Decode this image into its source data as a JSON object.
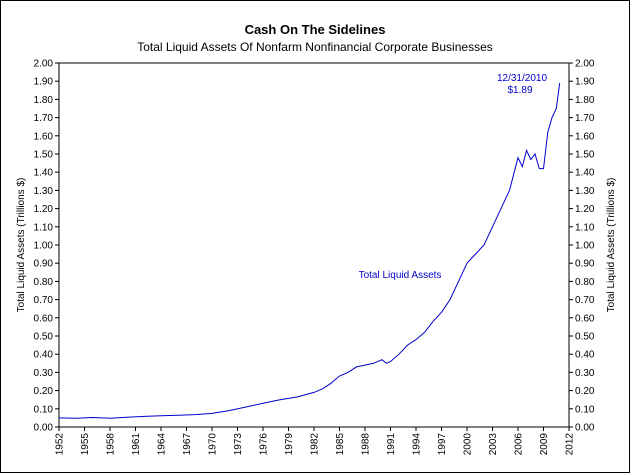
{
  "chart_data": {
    "type": "line",
    "title": "Cash On The Sidelines",
    "subtitle": "Total Liquid Assets Of Nonfarm Nonfinancial Corporate Businesses",
    "ylabel_left": "Total Liquid Assets (Trillions $)",
    "ylabel_right": "Total Liquid Assets (Trillions $)",
    "xlabel": "",
    "xlim": [
      1952,
      2012
    ],
    "ylim": [
      0.0,
      2.0
    ],
    "grid": false,
    "legend": "none",
    "x_ticks": [
      "1952",
      "1955",
      "1958",
      "1961",
      "1964",
      "1967",
      "1970",
      "1973",
      "1976",
      "1979",
      "1982",
      "1985",
      "1988",
      "1991",
      "1994",
      "1997",
      "2000",
      "2003",
      "2006",
      "2009",
      "2012"
    ],
    "y_ticks": [
      "0.00",
      "0.10",
      "0.20",
      "0.30",
      "0.40",
      "0.50",
      "0.60",
      "0.70",
      "0.80",
      "0.90",
      "1.00",
      "1.10",
      "1.20",
      "1.30",
      "1.40",
      "1.50",
      "1.60",
      "1.70",
      "1.80",
      "1.90",
      "2.00"
    ],
    "line_color": "#0000cc",
    "annotations": [
      {
        "text": "12/31/2010",
        "x": 2010.9,
        "y": 1.89
      },
      {
        "text": "$1.89",
        "x": 2010.9,
        "y": 1.89
      },
      {
        "text": "Total Liquid Assets",
        "x": 1993.0,
        "y": 0.83
      }
    ],
    "series": [
      {
        "x": [
          1952,
          1954,
          1956,
          1958,
          1960,
          1962,
          1964,
          1966,
          1968,
          1970,
          1972,
          1974,
          1976,
          1978,
          1980,
          1982,
          1983,
          1984,
          1985,
          1986,
          1987,
          1988,
          1989,
          1990,
          1990.5,
          1991,
          1992,
          1993,
          1994,
          1995,
          1996,
          1997,
          1998,
          1999,
          2000,
          2001,
          2002,
          2003,
          2004,
          2005,
          2006,
          2006.5,
          2007,
          2007.5,
          2008,
          2008.5,
          2009,
          2009.5,
          2010,
          2010.5,
          2010.9
        ],
        "y": [
          0.05,
          0.048,
          0.052,
          0.048,
          0.054,
          0.058,
          0.062,
          0.065,
          0.068,
          0.075,
          0.09,
          0.11,
          0.13,
          0.15,
          0.165,
          0.19,
          0.21,
          0.24,
          0.28,
          0.3,
          0.33,
          0.34,
          0.35,
          0.37,
          0.35,
          0.36,
          0.4,
          0.45,
          0.48,
          0.52,
          0.58,
          0.63,
          0.7,
          0.8,
          0.9,
          0.95,
          1.0,
          1.1,
          1.2,
          1.3,
          1.48,
          1.43,
          1.52,
          1.47,
          1.5,
          1.42,
          1.42,
          1.62,
          1.7,
          1.75,
          1.89
        ]
      }
    ]
  }
}
